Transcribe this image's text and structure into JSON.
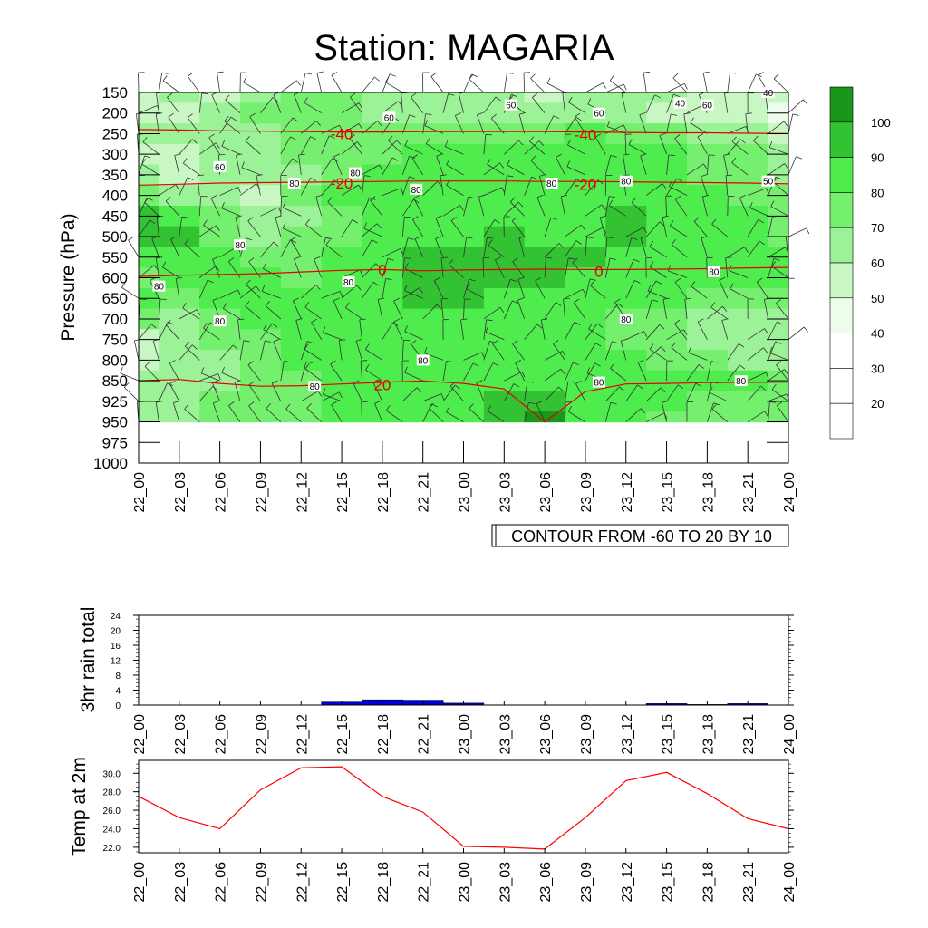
{
  "title": "Station: MAGARIA",
  "time_labels": [
    "22_00",
    "22_03",
    "22_06",
    "22_09",
    "22_12",
    "22_15",
    "22_18",
    "22_21",
    "23_00",
    "23_03",
    "23_06",
    "23_09",
    "23_12",
    "23_15",
    "23_18",
    "23_21",
    "24_00"
  ],
  "contour_note": "CONTOUR FROM -60 TO 20 BY 10",
  "colors": {
    "rh_levels": [
      "#ffffff",
      "#ffffff",
      "#ffffff",
      "#eefcec",
      "#c9f7c4",
      "#9cf296",
      "#74ef6e",
      "#4eec4c",
      "#32c232",
      "#1a961a"
    ],
    "temp_contour": "#e60000",
    "rain_bar": "#0000e6",
    "temp_line": "#ff0000"
  },
  "chart_data": [
    {
      "type": "heatmap",
      "name": "RH / Temperature / Wind cross-section",
      "ylabel": "Pressure (hPa)",
      "ylim": [
        1000,
        150
      ],
      "y_ticks": [
        150,
        200,
        250,
        300,
        350,
        400,
        450,
        500,
        550,
        600,
        650,
        700,
        750,
        800,
        850,
        925,
        950,
        975,
        1000
      ],
      "x_tick_labels": [
        "22_00",
        "22_03",
        "22_06",
        "22_09",
        "22_12",
        "22_15",
        "22_18",
        "22_21",
        "23_00",
        "23_03",
        "23_06",
        "23_09",
        "23_12",
        "23_15",
        "23_18",
        "23_21",
        "24_00"
      ],
      "colorbar_ticks": [
        20,
        30,
        40,
        50,
        60,
        70,
        80,
        90,
        100
      ],
      "rh_pressure_levels": [
        150,
        200,
        250,
        300,
        350,
        400,
        450,
        500,
        550,
        600,
        650,
        700,
        750,
        800,
        850,
        925,
        950
      ],
      "rh_values": [
        [
          55,
          60,
          55,
          60,
          75,
          70,
          65,
          65,
          60,
          60,
          55,
          60,
          60,
          60,
          55,
          55,
          50
        ],
        [
          50,
          55,
          65,
          70,
          75,
          70,
          65,
          65,
          60,
          60,
          60,
          60,
          60,
          55,
          50,
          50,
          45
        ],
        [
          60,
          60,
          60,
          65,
          70,
          75,
          75,
          75,
          75,
          75,
          75,
          80,
          75,
          70,
          65,
          60,
          55
        ],
        [
          55,
          55,
          60,
          65,
          70,
          75,
          75,
          80,
          80,
          80,
          80,
          80,
          80,
          80,
          75,
          70,
          65
        ],
        [
          60,
          55,
          60,
          60,
          65,
          75,
          80,
          80,
          80,
          80,
          80,
          80,
          80,
          80,
          75,
          70,
          65
        ],
        [
          70,
          65,
          60,
          55,
          70,
          80,
          80,
          80,
          80,
          85,
          85,
          80,
          80,
          80,
          80,
          75,
          70
        ],
        [
          90,
          80,
          70,
          60,
          65,
          75,
          80,
          85,
          80,
          85,
          85,
          85,
          90,
          85,
          80,
          80,
          75
        ],
        [
          95,
          90,
          75,
          65,
          70,
          75,
          80,
          85,
          85,
          90,
          85,
          85,
          90,
          85,
          80,
          80,
          75
        ],
        [
          80,
          80,
          80,
          75,
          75,
          80,
          80,
          90,
          90,
          90,
          90,
          90,
          85,
          80,
          80,
          80,
          80
        ],
        [
          75,
          80,
          80,
          80,
          75,
          80,
          80,
          90,
          95,
          90,
          90,
          85,
          80,
          80,
          80,
          80,
          80
        ],
        [
          80,
          75,
          80,
          80,
          80,
          80,
          80,
          90,
          95,
          85,
          85,
          80,
          80,
          80,
          75,
          75,
          75
        ],
        [
          70,
          65,
          75,
          80,
          80,
          80,
          80,
          85,
          85,
          85,
          80,
          80,
          75,
          70,
          65,
          60,
          60
        ],
        [
          55,
          60,
          70,
          75,
          80,
          80,
          80,
          80,
          80,
          80,
          80,
          80,
          75,
          70,
          65,
          60,
          60
        ],
        [
          55,
          60,
          65,
          75,
          80,
          80,
          80,
          80,
          80,
          80,
          80,
          80,
          80,
          75,
          70,
          65,
          65
        ],
        [
          60,
          60,
          60,
          70,
          75,
          80,
          80,
          80,
          80,
          85,
          85,
          80,
          80,
          85,
          80,
          80,
          75
        ],
        [
          60,
          65,
          70,
          75,
          75,
          80,
          80,
          80,
          85,
          95,
          95,
          80,
          80,
          80,
          75,
          75,
          70
        ],
        [
          60,
          65,
          70,
          75,
          75,
          80,
          80,
          80,
          85,
          95,
          100,
          80,
          80,
          75,
          75,
          70,
          70
        ]
      ],
      "temperature_contours": [
        {
          "label": "-40",
          "pressure": [
            240,
            241,
            243,
            244,
            245,
            246,
            246,
            245,
            245,
            245,
            245,
            246,
            247,
            248,
            248,
            249,
            250
          ]
        },
        {
          "label": "-20",
          "pressure": [
            375,
            373,
            370,
            369,
            368,
            367,
            366,
            365,
            365,
            365,
            366,
            366,
            367,
            368,
            369,
            370,
            372
          ]
        },
        {
          "label": "0",
          "pressure": [
            597,
            594,
            592,
            590,
            586,
            582,
            580,
            583,
            581,
            580,
            579,
            580,
            580,
            579,
            578,
            576,
            575
          ]
        },
        {
          "label": "20",
          "pressure": [
            850,
            847,
            860,
            870,
            868,
            862,
            856,
            851,
            860,
            880,
            950,
            890,
            862,
            860,
            857,
            856,
            855
          ]
        }
      ],
      "contour_labels": [
        {
          "text": "60",
          "t": 6,
          "p": 330
        },
        {
          "text": "80",
          "t": 11.5,
          "p": 370
        },
        {
          "text": "80",
          "t": 16,
          "p": 345
        },
        {
          "text": "60",
          "t": 18.5,
          "p": 210
        },
        {
          "text": "80",
          "t": 20.5,
          "p": 385
        },
        {
          "text": "60",
          "t": 27.5,
          "p": 180
        },
        {
          "text": "80",
          "t": 30.5,
          "p": 370
        },
        {
          "text": "60",
          "t": 34,
          "p": 200
        },
        {
          "text": "80",
          "t": 36,
          "p": 365
        },
        {
          "text": "40",
          "t": 40,
          "p": 175
        },
        {
          "text": "60",
          "t": 42,
          "p": 180
        },
        {
          "text": "40",
          "t": 46.5,
          "p": 150
        },
        {
          "text": "50",
          "t": 46.5,
          "p": 365
        },
        {
          "text": "80",
          "t": 7.5,
          "p": 520
        },
        {
          "text": "80",
          "t": 1.5,
          "p": 620
        },
        {
          "text": "80",
          "t": 15.5,
          "p": 610
        },
        {
          "text": "80",
          "t": 6,
          "p": 705
        },
        {
          "text": "80",
          "t": 13,
          "p": 870
        },
        {
          "text": "80",
          "t": 21,
          "p": 800
        },
        {
          "text": "80",
          "t": 36,
          "p": 700
        },
        {
          "text": "80",
          "t": 34,
          "p": 855
        },
        {
          "text": "80",
          "t": 44.5,
          "p": 850
        },
        {
          "text": "80",
          "t": 42.5,
          "p": 585
        }
      ],
      "temperature_labels": [
        {
          "text": "-40",
          "t": 15,
          "p": 250
        },
        {
          "text": "-40",
          "t": 33,
          "p": 252
        },
        {
          "text": "-20",
          "t": 15,
          "p": 370
        },
        {
          "text": "-20",
          "t": 33,
          "p": 373
        },
        {
          "text": "0",
          "t": 18,
          "p": 580
        },
        {
          "text": "0",
          "t": 34,
          "p": 585
        },
        {
          "text": "20",
          "t": 18,
          "p": 865
        }
      ],
      "wind_barbs": "present"
    },
    {
      "type": "bar",
      "ylabel": "3hr rain total",
      "ylim": [
        0,
        24
      ],
      "y_ticks": [
        0,
        4,
        8,
        12,
        16,
        20,
        24
      ],
      "categories": [
        "22_00",
        "22_03",
        "22_06",
        "22_09",
        "22_12",
        "22_15",
        "22_18",
        "22_21",
        "23_00",
        "23_03",
        "23_06",
        "23_09",
        "23_12",
        "23_15",
        "23_18",
        "23_21",
        "24_00"
      ],
      "values": [
        0,
        0,
        0,
        0,
        0,
        0.8,
        1.4,
        1.3,
        0.5,
        0.05,
        0,
        0,
        0,
        0.4,
        0.15,
        0.4,
        0
      ]
    },
    {
      "type": "line",
      "ylabel": "Temp at 2m",
      "ylim": [
        21.4,
        31.4
      ],
      "y_ticks": [
        "22.0",
        "24.0",
        "26.0",
        "28.0",
        "30.0"
      ],
      "categories": [
        "22_00",
        "22_03",
        "22_06",
        "22_09",
        "22_12",
        "22_15",
        "22_18",
        "22_21",
        "23_00",
        "23_03",
        "23_06",
        "23_09",
        "23_12",
        "23_15",
        "23_18",
        "23_21",
        "24_00"
      ],
      "values": [
        27.5,
        25.2,
        24.0,
        28.2,
        30.6,
        30.7,
        27.5,
        25.8,
        22.1,
        22.0,
        21.8,
        25.2,
        29.2,
        30.1,
        27.8,
        25.1,
        24.0
      ]
    }
  ]
}
